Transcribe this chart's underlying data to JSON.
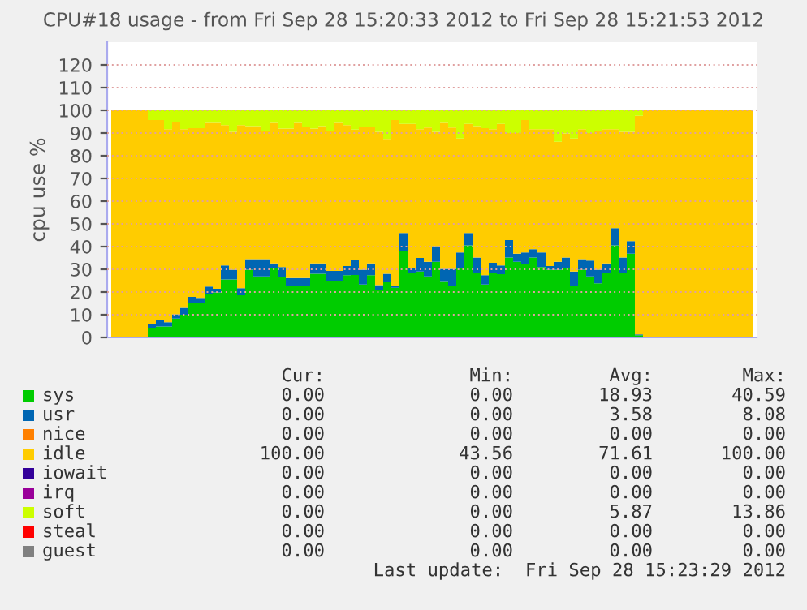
{
  "chart_data": {
    "type": "area",
    "stacked": true,
    "title": "CPU#18 usage - from Fri Sep 28 15:20:33 2012 to Fri Sep 28 15:21:53 2012",
    "ylabel": "cpu use %",
    "categories": [
      null,
      null,
      null,
      null,
      null,
      null,
      null,
      null,
      null,
      null,
      null,
      null,
      null,
      null,
      null,
      null,
      null,
      null,
      null,
      null,
      null,
      null,
      null,
      null,
      null,
      null,
      null,
      null,
      null,
      null,
      null,
      null,
      null,
      null,
      null,
      null,
      null,
      null,
      null,
      null,
      null,
      null,
      null,
      null,
      null,
      null,
      null,
      null,
      null,
      null,
      null,
      null,
      null,
      null,
      null,
      null,
      null,
      null,
      null,
      null,
      null,
      null,
      null,
      null,
      null,
      null,
      null,
      null,
      null,
      null,
      null,
      null,
      null,
      null,
      null,
      null,
      null,
      null,
      null,
      null
    ],
    "ylim": [
      0,
      130
    ],
    "yticks": [
      0,
      10,
      20,
      30,
      40,
      50,
      60,
      70,
      80,
      90,
      100,
      110,
      120
    ],
    "grid": "y",
    "legend": "bottom",
    "series": [
      {
        "name": "sys",
        "color": "#00cc00",
        "values": [
          0,
          0,
          0,
          0,
          0,
          4.3,
          4.8,
          4.8,
          8.3,
          10,
          15,
          15,
          19,
          19.8,
          25.5,
          25.5,
          18.6,
          29.8,
          26.9,
          26.9,
          30.5,
          26.7,
          22.6,
          22.6,
          22.6,
          28,
          28,
          24.8,
          24.8,
          27.4,
          27.5,
          23.3,
          27.4,
          20.7,
          24.3,
          21.9,
          38,
          28.6,
          29,
          26.9,
          33.3,
          24.5,
          22.6,
          30.5,
          40.5,
          28.6,
          23.3,
          28.6,
          27.9,
          35.2,
          33.3,
          32.1,
          35.2,
          31,
          29.8,
          29.8,
          30.5,
          22.6,
          29.8,
          26.9,
          23.8,
          28.6,
          40.5,
          28.6,
          36.9,
          1,
          0,
          0,
          0,
          0,
          0,
          0,
          0,
          0,
          0,
          0,
          0,
          0,
          0,
          0
        ]
      },
      {
        "name": "usr",
        "color": "#0066b3",
        "values": [
          0,
          0,
          0,
          0,
          0,
          1.7,
          3.1,
          1.9,
          1.9,
          3,
          2.9,
          2.4,
          3.4,
          1.6,
          6.2,
          4.3,
          3.1,
          4.7,
          7.6,
          7.6,
          2.1,
          4.3,
          3.6,
          3.6,
          3.6,
          4.6,
          4.6,
          4.5,
          4.5,
          4,
          6.4,
          6.5,
          5.2,
          2.3,
          3.7,
          0.7,
          8,
          1.9,
          6,
          6.4,
          6.9,
          5.7,
          7.6,
          6.9,
          5.5,
          6.6,
          4.1,
          4.3,
          3.8,
          7.7,
          3.6,
          5.3,
          3.6,
          6.4,
          1.6,
          3.5,
          4.7,
          6.4,
          4.7,
          6.9,
          6,
          4,
          7.6,
          6.6,
          5.5,
          0.3,
          0,
          0,
          0,
          0,
          0,
          0,
          0,
          0,
          0,
          0,
          0,
          0,
          0,
          0
        ]
      },
      {
        "name": "nice",
        "color": "#ff8000",
        "values": [
          null,
          null,
          null,
          null,
          null,
          null,
          null,
          null,
          null,
          null,
          null,
          null,
          null,
          null,
          null,
          null,
          null,
          null,
          null,
          null,
          null,
          null,
          null,
          null,
          null,
          null,
          null,
          null,
          null,
          null,
          null,
          null,
          null,
          null,
          null,
          null,
          null,
          null,
          null,
          null,
          null,
          null,
          null,
          null,
          null,
          null,
          null,
          null,
          null,
          null,
          null,
          null,
          null,
          null,
          null,
          null,
          null,
          null,
          null,
          null,
          null,
          null,
          null,
          null,
          null,
          null,
          null,
          null,
          null,
          null,
          null,
          null,
          null,
          null,
          null,
          null,
          null,
          null,
          null,
          null
        ]
      },
      {
        "name": "idle",
        "color": "#ffcc00",
        "values": [
          100,
          100,
          100,
          100,
          100,
          89.7,
          87.8,
          85,
          84.6,
          78.7,
          74.2,
          74.7,
          72.1,
          73.1,
          61.8,
          60.7,
          71.8,
          58.5,
          58.5,
          56.5,
          61.9,
          61,
          65.8,
          68.3,
          66.3,
          59.4,
          60.4,
          61.7,
          65.2,
          62.1,
          57.6,
          62.7,
          59.9,
          67.5,
          59.4,
          73.1,
          48,
          63.5,
          56.7,
          59.1,
          50.3,
          64.3,
          62.2,
          50.2,
          48,
          57.8,
          64.7,
          58.8,
          62.3,
          47.1,
          53.1,
          58.3,
          52.9,
          54.3,
          60.3,
          52.9,
          54.6,
          58.6,
          57.2,
          56.2,
          61.2,
          59.1,
          43.6,
          55.3,
          48.1,
          96.3,
          100,
          100,
          100,
          100,
          100,
          100,
          100,
          100,
          100,
          100,
          100,
          100,
          100,
          100
        ]
      },
      {
        "name": "iowait",
        "color": "#330099",
        "values": [
          null,
          null,
          null,
          null,
          null,
          null,
          null,
          null,
          null,
          null,
          null,
          null,
          null,
          null,
          null,
          null,
          null,
          null,
          null,
          null,
          null,
          null,
          null,
          null,
          null,
          null,
          null,
          null,
          null,
          null,
          null,
          null,
          null,
          null,
          null,
          null,
          null,
          null,
          null,
          null,
          null,
          null,
          null,
          null,
          null,
          null,
          null,
          null,
          null,
          null,
          null,
          null,
          null,
          null,
          null,
          null,
          null,
          null,
          null,
          null,
          null,
          null,
          null,
          null,
          null,
          null,
          null,
          null,
          null,
          null,
          null,
          null,
          null,
          null,
          null,
          null,
          null,
          null,
          null,
          null
        ]
      },
      {
        "name": "irq",
        "color": "#990099",
        "values": [
          null,
          null,
          null,
          null,
          null,
          null,
          null,
          null,
          null,
          null,
          null,
          null,
          null,
          null,
          null,
          null,
          null,
          null,
          null,
          null,
          null,
          null,
          null,
          null,
          null,
          null,
          null,
          null,
          null,
          null,
          null,
          null,
          null,
          null,
          null,
          null,
          null,
          null,
          null,
          null,
          null,
          null,
          null,
          null,
          null,
          null,
          null,
          null,
          null,
          null,
          null,
          null,
          null,
          null,
          null,
          null,
          null,
          null,
          null,
          null,
          null,
          null,
          null,
          null,
          null,
          null,
          null,
          null,
          null,
          null,
          null,
          null,
          null,
          null,
          null,
          null,
          null,
          null,
          null,
          null
        ]
      },
      {
        "name": "soft",
        "color": "#ccff00",
        "values": [
          0,
          0,
          0,
          0,
          0,
          4.3,
          4.3,
          8.3,
          5.2,
          8.3,
          7.9,
          7.9,
          5.5,
          5.5,
          6.5,
          9.5,
          6.5,
          7,
          7,
          9,
          5.5,
          8,
          8,
          5.5,
          7.5,
          8,
          7,
          9,
          5.5,
          6.5,
          8.5,
          7.5,
          7.5,
          9.5,
          12.6,
          4.3,
          6,
          6,
          8.3,
          7.6,
          9.5,
          5.5,
          7.6,
          12.4,
          6,
          7,
          7.9,
          8.3,
          6,
          10,
          10,
          4.3,
          8.3,
          8.3,
          8.3,
          13.8,
          10.2,
          12.4,
          8.3,
          10,
          9,
          8.3,
          8.3,
          9.5,
          9.5,
          2.4,
          0,
          0,
          0,
          0,
          0,
          0,
          0,
          0,
          0,
          0,
          0,
          0,
          0,
          0
        ]
      },
      {
        "name": "steal",
        "color": "#ff0000",
        "values": [
          null,
          null,
          null,
          null,
          null,
          null,
          null,
          null,
          null,
          null,
          null,
          null,
          null,
          null,
          null,
          null,
          null,
          null,
          null,
          null,
          null,
          null,
          null,
          null,
          null,
          null,
          null,
          null,
          null,
          null,
          null,
          null,
          null,
          null,
          null,
          null,
          null,
          null,
          null,
          null,
          null,
          null,
          null,
          null,
          null,
          null,
          null,
          null,
          null,
          null,
          null,
          null,
          null,
          null,
          null,
          null,
          null,
          null,
          null,
          null,
          null,
          null,
          null,
          null,
          null,
          null,
          null,
          null,
          null,
          null,
          null,
          null,
          null,
          null,
          null,
          null,
          null,
          null,
          null,
          null
        ]
      },
      {
        "name": "guest",
        "color": "#808080",
        "values": [
          null,
          null,
          null,
          null,
          null,
          null,
          null,
          null,
          null,
          null,
          null,
          null,
          null,
          null,
          null,
          null,
          null,
          null,
          null,
          null,
          null,
          null,
          null,
          null,
          null,
          null,
          null,
          null,
          null,
          null,
          null,
          null,
          null,
          null,
          null,
          null,
          null,
          null,
          null,
          null,
          null,
          null,
          null,
          null,
          null,
          null,
          null,
          null,
          null,
          null,
          null,
          null,
          null,
          null,
          null,
          null,
          null,
          null,
          null,
          null,
          null,
          null,
          null,
          null,
          null,
          null,
          null,
          null,
          null,
          null,
          null,
          null,
          null,
          null,
          null,
          null,
          null,
          null,
          null,
          null
        ]
      }
    ],
    "annotations": [
      "Cur:",
      "Min:",
      "Avg:",
      "Max:",
      "0.00",
      "0.00",
      "18.93",
      "40.59",
      "0.00",
      "0.00",
      "3.58",
      "8.08",
      "0.00",
      "0.00",
      "0.00",
      "0.00",
      "100.00",
      "43.56",
      "71.61",
      "100.00",
      "0.00",
      "0.00",
      "0.00",
      "0.00",
      "0.00",
      "0.00",
      "0.00",
      "0.00",
      "0.00",
      "0.00",
      "5.87",
      "13.86",
      "0.00",
      "0.00",
      "0.00",
      "0.00",
      "0.00",
      "0.00",
      "0.00",
      "0.00",
      "Last update:  Fri Sep 28 15:23:29 2012"
    ]
  }
}
